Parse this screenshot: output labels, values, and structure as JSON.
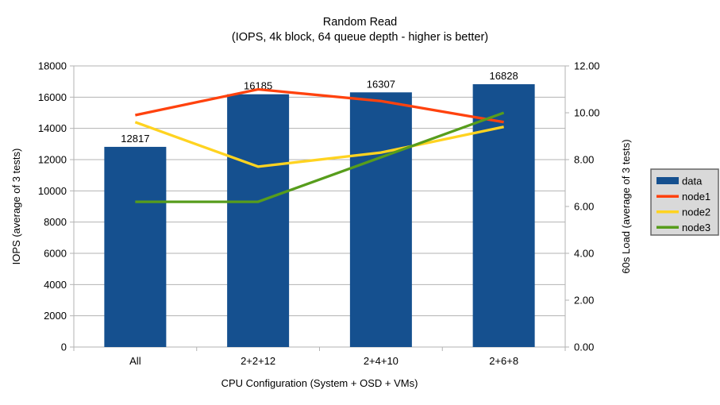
{
  "chart_data": {
    "type": "bar",
    "combo": "bar+line",
    "title": "Random Read",
    "subtitle": "(IOPS, 4k block, 64 queue depth - higher is better)",
    "xlabel": "CPU Configuration (System + OSD + VMs)",
    "ylabel_left": "IOPS (average of 3 tests)",
    "ylabel_right": "60s Load (average of 3 tests)",
    "categories": [
      "All",
      "2+2+12",
      "2+4+10",
      "2+6+8"
    ],
    "ylim_left": [
      0,
      18000
    ],
    "ytick_step_left": 2000,
    "ytick_labels_left": [
      "0",
      "2000",
      "4000",
      "6000",
      "8000",
      "10000",
      "12000",
      "14000",
      "16000",
      "18000"
    ],
    "ylim_right": [
      0,
      12
    ],
    "ytick_step_right": 2,
    "ytick_labels_right": [
      "0.00",
      "2.00",
      "4.00",
      "6.00",
      "8.00",
      "10.00",
      "12.00"
    ],
    "grid": true,
    "legend_position": "right",
    "series": [
      {
        "name": "data",
        "type": "bar",
        "axis": "left",
        "color": "#15508f",
        "values": [
          12817,
          16185,
          16307,
          16828
        ],
        "data_labels": [
          "12817",
          "16185",
          "16307",
          "16828"
        ]
      },
      {
        "name": "node1",
        "type": "line",
        "axis": "right",
        "color": "#ff420e",
        "values": [
          9.9,
          11.0,
          10.5,
          9.6
        ]
      },
      {
        "name": "node2",
        "type": "line",
        "axis": "right",
        "color": "#ffd320",
        "values": [
          9.6,
          7.7,
          8.3,
          9.4
        ]
      },
      {
        "name": "node3",
        "type": "line",
        "axis": "right",
        "color": "#579d1c",
        "values": [
          6.2,
          6.2,
          8.1,
          10.0
        ]
      }
    ]
  },
  "colors": {
    "background": "#ffffff",
    "grid": "#b3b3b3",
    "axis": "#b3b3b3",
    "text": "#000000",
    "legend_bg": "#d9d9d9",
    "legend_border": "#666666"
  }
}
